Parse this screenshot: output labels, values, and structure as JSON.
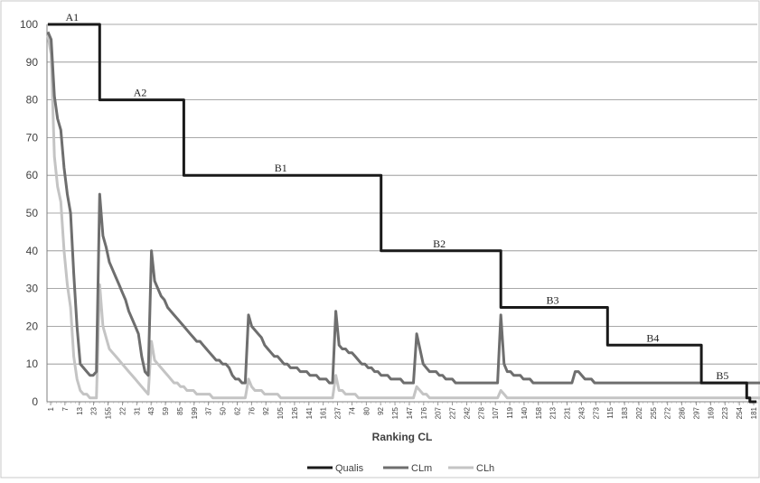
{
  "chart_data": {
    "type": "line",
    "title": "",
    "xlabel": "Ranking CL",
    "ylabel": "",
    "ylim": [
      0,
      100
    ],
    "yticks": [
      0,
      10,
      20,
      30,
      40,
      50,
      60,
      70,
      80,
      90,
      100
    ],
    "grid": true,
    "legend_position": "bottom",
    "colors": {
      "Qualis": "#1a1a1a",
      "CLm": "#6e6e6e",
      "CLh": "#c4c4c4",
      "grid": "#8c8c8c",
      "axis": "#7f7f7f"
    },
    "x_tick_labels": [
      "1",
      "7",
      "13",
      "23",
      "155",
      "22",
      "31",
      "43",
      "59",
      "85",
      "199",
      "37",
      "50",
      "62",
      "76",
      "92",
      "105",
      "126",
      "141",
      "161",
      "237",
      "74",
      "80",
      "92",
      "125",
      "147",
      "176",
      "207",
      "227",
      "242",
      "278",
      "107",
      "119",
      "140",
      "158",
      "213",
      "231",
      "243",
      "273",
      "115",
      "183",
      "202",
      "255",
      "272",
      "286",
      "297",
      "169",
      "223",
      "254",
      "181"
    ],
    "segment_labels": [
      "A1",
      "A2",
      "B1",
      "B2",
      "B3",
      "B4",
      "B5"
    ],
    "series": [
      {
        "name": "Qualis",
        "values": [
          100,
          100,
          100,
          100,
          100,
          100,
          100,
          100,
          100,
          100,
          100,
          100,
          100,
          100,
          100,
          100,
          80,
          80,
          80,
          80,
          80,
          80,
          80,
          80,
          80,
          80,
          80,
          80,
          80,
          80,
          80,
          80,
          80,
          80,
          80,
          80,
          80,
          80,
          80,
          80,
          80,
          80,
          60,
          60,
          60,
          60,
          60,
          60,
          60,
          60,
          60,
          60,
          60,
          60,
          60,
          60,
          60,
          60,
          60,
          60,
          60,
          60,
          60,
          60,
          60,
          60,
          60,
          60,
          60,
          60,
          60,
          60,
          60,
          60,
          60,
          60,
          60,
          60,
          60,
          60,
          60,
          60,
          60,
          60,
          60,
          60,
          60,
          60,
          60,
          60,
          60,
          60,
          60,
          60,
          60,
          60,
          60,
          60,
          60,
          60,
          60,
          60,
          60,
          40,
          40,
          40,
          40,
          40,
          40,
          40,
          40,
          40,
          40,
          40,
          40,
          40,
          40,
          40,
          40,
          40,
          40,
          40,
          40,
          40,
          40,
          40,
          40,
          40,
          40,
          40,
          40,
          40,
          40,
          40,
          40,
          40,
          40,
          40,
          40,
          40,
          25,
          25,
          25,
          25,
          25,
          25,
          25,
          25,
          25,
          25,
          25,
          25,
          25,
          25,
          25,
          25,
          25,
          25,
          25,
          25,
          25,
          25,
          25,
          25,
          25,
          25,
          25,
          25,
          25,
          25,
          25,
          25,
          25,
          15,
          15,
          15,
          15,
          15,
          15,
          15,
          15,
          15,
          15,
          15,
          15,
          15,
          15,
          15,
          15,
          15,
          15,
          15,
          15,
          15,
          15,
          15,
          15,
          15,
          15,
          15,
          15,
          15,
          5,
          5,
          5,
          5,
          5,
          5,
          5,
          5,
          5,
          5,
          5,
          5,
          5,
          5,
          1,
          0,
          0,
          0
        ]
      },
      {
        "name": "CLm",
        "values": [
          98,
          96,
          81,
          75,
          72,
          62,
          55,
          50,
          34,
          20,
          10,
          9,
          8,
          7,
          7,
          8,
          55,
          44,
          41,
          37,
          35,
          33,
          31,
          29,
          27,
          24,
          22,
          20,
          18,
          12,
          8,
          7,
          40,
          32,
          30,
          28,
          27,
          25,
          24,
          23,
          22,
          21,
          20,
          19,
          18,
          17,
          16,
          16,
          15,
          14,
          13,
          12,
          11,
          11,
          10,
          10,
          9,
          7,
          6,
          6,
          5,
          5,
          23,
          20,
          19,
          18,
          17,
          15,
          14,
          13,
          12,
          12,
          11,
          10,
          10,
          9,
          9,
          9,
          8,
          8,
          8,
          7,
          7,
          7,
          6,
          6,
          6,
          5,
          5,
          24,
          15,
          14,
          14,
          13,
          13,
          12,
          11,
          10,
          10,
          9,
          9,
          8,
          8,
          7,
          7,
          7,
          6,
          6,
          6,
          6,
          5,
          5,
          5,
          5,
          18,
          14,
          10,
          9,
          8,
          8,
          8,
          7,
          7,
          6,
          6,
          6,
          5,
          5,
          5,
          5,
          5,
          5,
          5,
          5,
          5,
          5,
          5,
          5,
          5,
          5,
          23,
          10,
          8,
          8,
          7,
          7,
          7,
          6,
          6,
          6,
          5,
          5,
          5,
          5,
          5,
          5,
          5,
          5,
          5,
          5,
          5,
          5,
          5,
          8,
          8,
          7,
          6,
          6,
          6,
          5,
          5,
          5,
          5,
          5,
          5,
          5,
          5,
          5,
          5,
          5,
          5,
          5,
          5,
          5,
          5,
          5,
          5,
          5,
          5,
          5,
          5,
          5,
          5,
          5,
          5,
          5,
          5,
          5,
          5,
          5,
          5,
          5,
          5,
          5,
          5,
          5,
          5,
          5,
          5,
          5,
          5,
          5,
          5,
          5,
          5,
          5,
          5,
          5,
          5,
          5,
          5,
          5,
          5,
          5,
          5,
          5,
          5,
          5,
          5,
          5,
          5,
          5,
          5,
          8,
          7,
          6,
          6,
          5
        ]
      },
      {
        "name": "CLh",
        "values": [
          97,
          92,
          65,
          57,
          53,
          40,
          31,
          25,
          12,
          6,
          3,
          2,
          2,
          1,
          1,
          1,
          31,
          20,
          17,
          14,
          13,
          12,
          11,
          10,
          9,
          8,
          7,
          6,
          5,
          4,
          3,
          2,
          16,
          11,
          10,
          9,
          8,
          7,
          6,
          5,
          5,
          4,
          4,
          3,
          3,
          3,
          2,
          2,
          2,
          2,
          2,
          1,
          1,
          1,
          1,
          1,
          1,
          1,
          1,
          1,
          1,
          1,
          6,
          4,
          3,
          3,
          3,
          2,
          2,
          2,
          2,
          2,
          1,
          1,
          1,
          1,
          1,
          1,
          1,
          1,
          1,
          1,
          1,
          1,
          1,
          1,
          1,
          1,
          1,
          7,
          3,
          3,
          2,
          2,
          2,
          2,
          1,
          1,
          1,
          1,
          1,
          1,
          1,
          1,
          1,
          1,
          1,
          1,
          1,
          1,
          1,
          1,
          1,
          1,
          4,
          3,
          2,
          2,
          1,
          1,
          1,
          1,
          1,
          1,
          1,
          1,
          1,
          1,
          1,
          1,
          1,
          1,
          1,
          1,
          1,
          1,
          1,
          1,
          1,
          1,
          3,
          2,
          1,
          1,
          1,
          1,
          1,
          1,
          1,
          1,
          1,
          1,
          1,
          1,
          1,
          1,
          1,
          1,
          1,
          1,
          1,
          1,
          1,
          1,
          1,
          1,
          1,
          1,
          1,
          1,
          1,
          1,
          1,
          1,
          1,
          1,
          1,
          1,
          1,
          1,
          1,
          1,
          1,
          1,
          1,
          1,
          1,
          1,
          1,
          1,
          1,
          1,
          1,
          1,
          1,
          1,
          1,
          1,
          1,
          1,
          1,
          1,
          1,
          1,
          1,
          1,
          1,
          1,
          1,
          1,
          1,
          1,
          1,
          1,
          1,
          1,
          1,
          1,
          1,
          1,
          1,
          1,
          1,
          1,
          1,
          1,
          1,
          1,
          1,
          1,
          1,
          1,
          1,
          1,
          1,
          1
        ]
      }
    ]
  }
}
